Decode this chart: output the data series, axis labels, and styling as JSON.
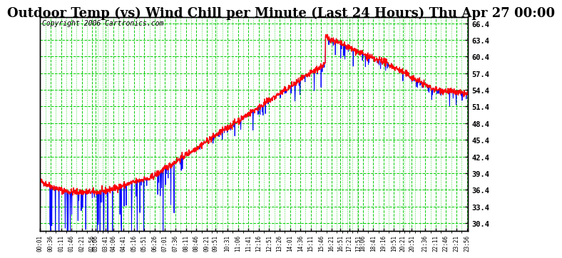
{
  "title": "Outdoor Temp (vs) Wind Chill per Minute (Last 24 Hours) Thu Apr 27 00:00",
  "copyright": "Copyright 2006 Cartronics.com",
  "ylabel_right_ticks": [
    30.4,
    33.4,
    36.4,
    39.4,
    42.4,
    45.4,
    48.4,
    51.4,
    54.4,
    57.4,
    60.4,
    63.4,
    66.4
  ],
  "ymin": 29.0,
  "ymax": 67.5,
  "bg_color": "#ffffff",
  "plot_bg_color": "#ffffff",
  "grid_color": "#00cc00",
  "line_color_temp": "#ff0000",
  "line_color_wind": "#0000ff",
  "title_fontsize": 13,
  "copyright_fontsize": 7
}
